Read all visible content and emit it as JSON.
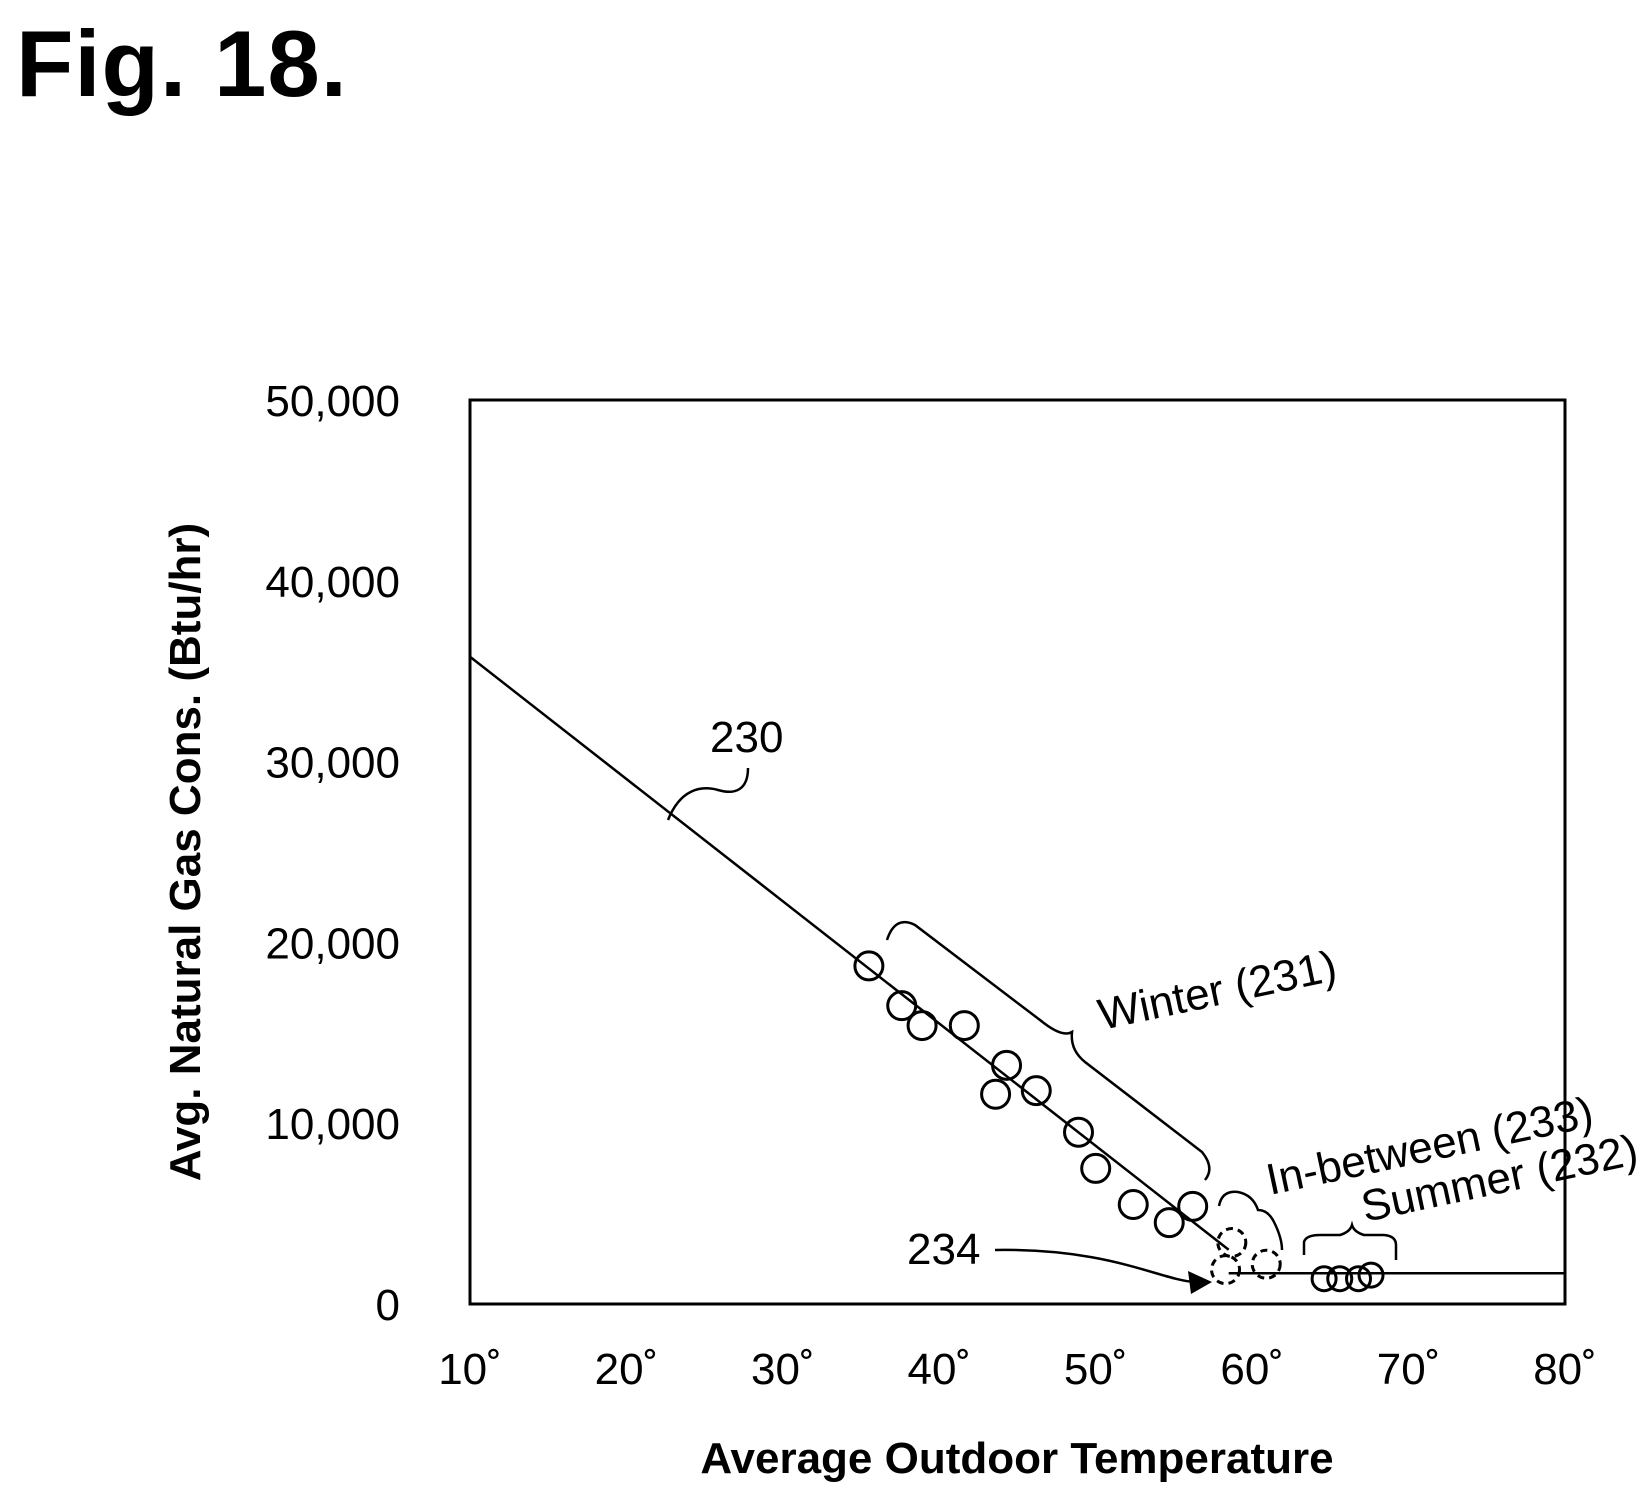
{
  "figure_title": "Fig. 18.",
  "chart_data": {
    "type": "scatter",
    "xlabel": "Average Outdoor Temperature",
    "ylabel": "Avg. Natural Gas Cons. (Btu/hr)",
    "xlim": [
      10,
      80
    ],
    "ylim": [
      0,
      50000
    ],
    "x_ticks": [
      10,
      20,
      30,
      40,
      50,
      60,
      70,
      80
    ],
    "x_tick_labels": [
      "10˚",
      "20˚",
      "30˚",
      "40˚",
      "50˚",
      "60˚",
      "70˚",
      "80˚"
    ],
    "y_ticks": [
      0,
      10000,
      20000,
      30000,
      40000,
      50000
    ],
    "y_tick_labels": [
      "0",
      "10,000",
      "20,000",
      "30,000",
      "40,000",
      "50,000"
    ],
    "grid": false,
    "series": [
      {
        "name": "Winter (231)",
        "style": "solid",
        "points": [
          {
            "x": 35.5,
            "y": 18700
          },
          {
            "x": 37.6,
            "y": 16500
          },
          {
            "x": 38.9,
            "y": 15400
          },
          {
            "x": 41.6,
            "y": 15400
          },
          {
            "x": 44.3,
            "y": 13200
          },
          {
            "x": 43.6,
            "y": 11600
          },
          {
            "x": 46.2,
            "y": 11800
          },
          {
            "x": 48.9,
            "y": 9500
          },
          {
            "x": 50.0,
            "y": 7500
          },
          {
            "x": 52.4,
            "y": 5500
          },
          {
            "x": 54.7,
            "y": 4500
          },
          {
            "x": 56.2,
            "y": 5400
          }
        ]
      },
      {
        "name": "In-between (233)",
        "style": "dashed",
        "points": [
          {
            "x": 58.7,
            "y": 3400
          },
          {
            "x": 58.3,
            "y": 1900
          },
          {
            "x": 60.9,
            "y": 2200
          }
        ]
      },
      {
        "name": "Summer (232)",
        "style": "solid",
        "points": [
          {
            "x": 64.6,
            "y": 1400
          },
          {
            "x": 65.6,
            "y": 1400
          },
          {
            "x": 66.8,
            "y": 1400
          },
          {
            "x": 67.6,
            "y": 1600
          }
        ]
      }
    ],
    "fit_lines": [
      {
        "label": "230",
        "segments": [
          {
            "x1": 10,
            "y1": 35800,
            "x2": 58.5,
            "y2": 3000
          },
          {
            "x1": 58.5,
            "y1": 1700,
            "x2": 80,
            "y2": 1700
          }
        ]
      }
    ],
    "annotations": [
      {
        "text": "230",
        "target": "fit line"
      },
      {
        "text": "Winter (231)"
      },
      {
        "text": "In-between (233)"
      },
      {
        "text": "Summer (232)"
      },
      {
        "text": "234"
      }
    ]
  }
}
